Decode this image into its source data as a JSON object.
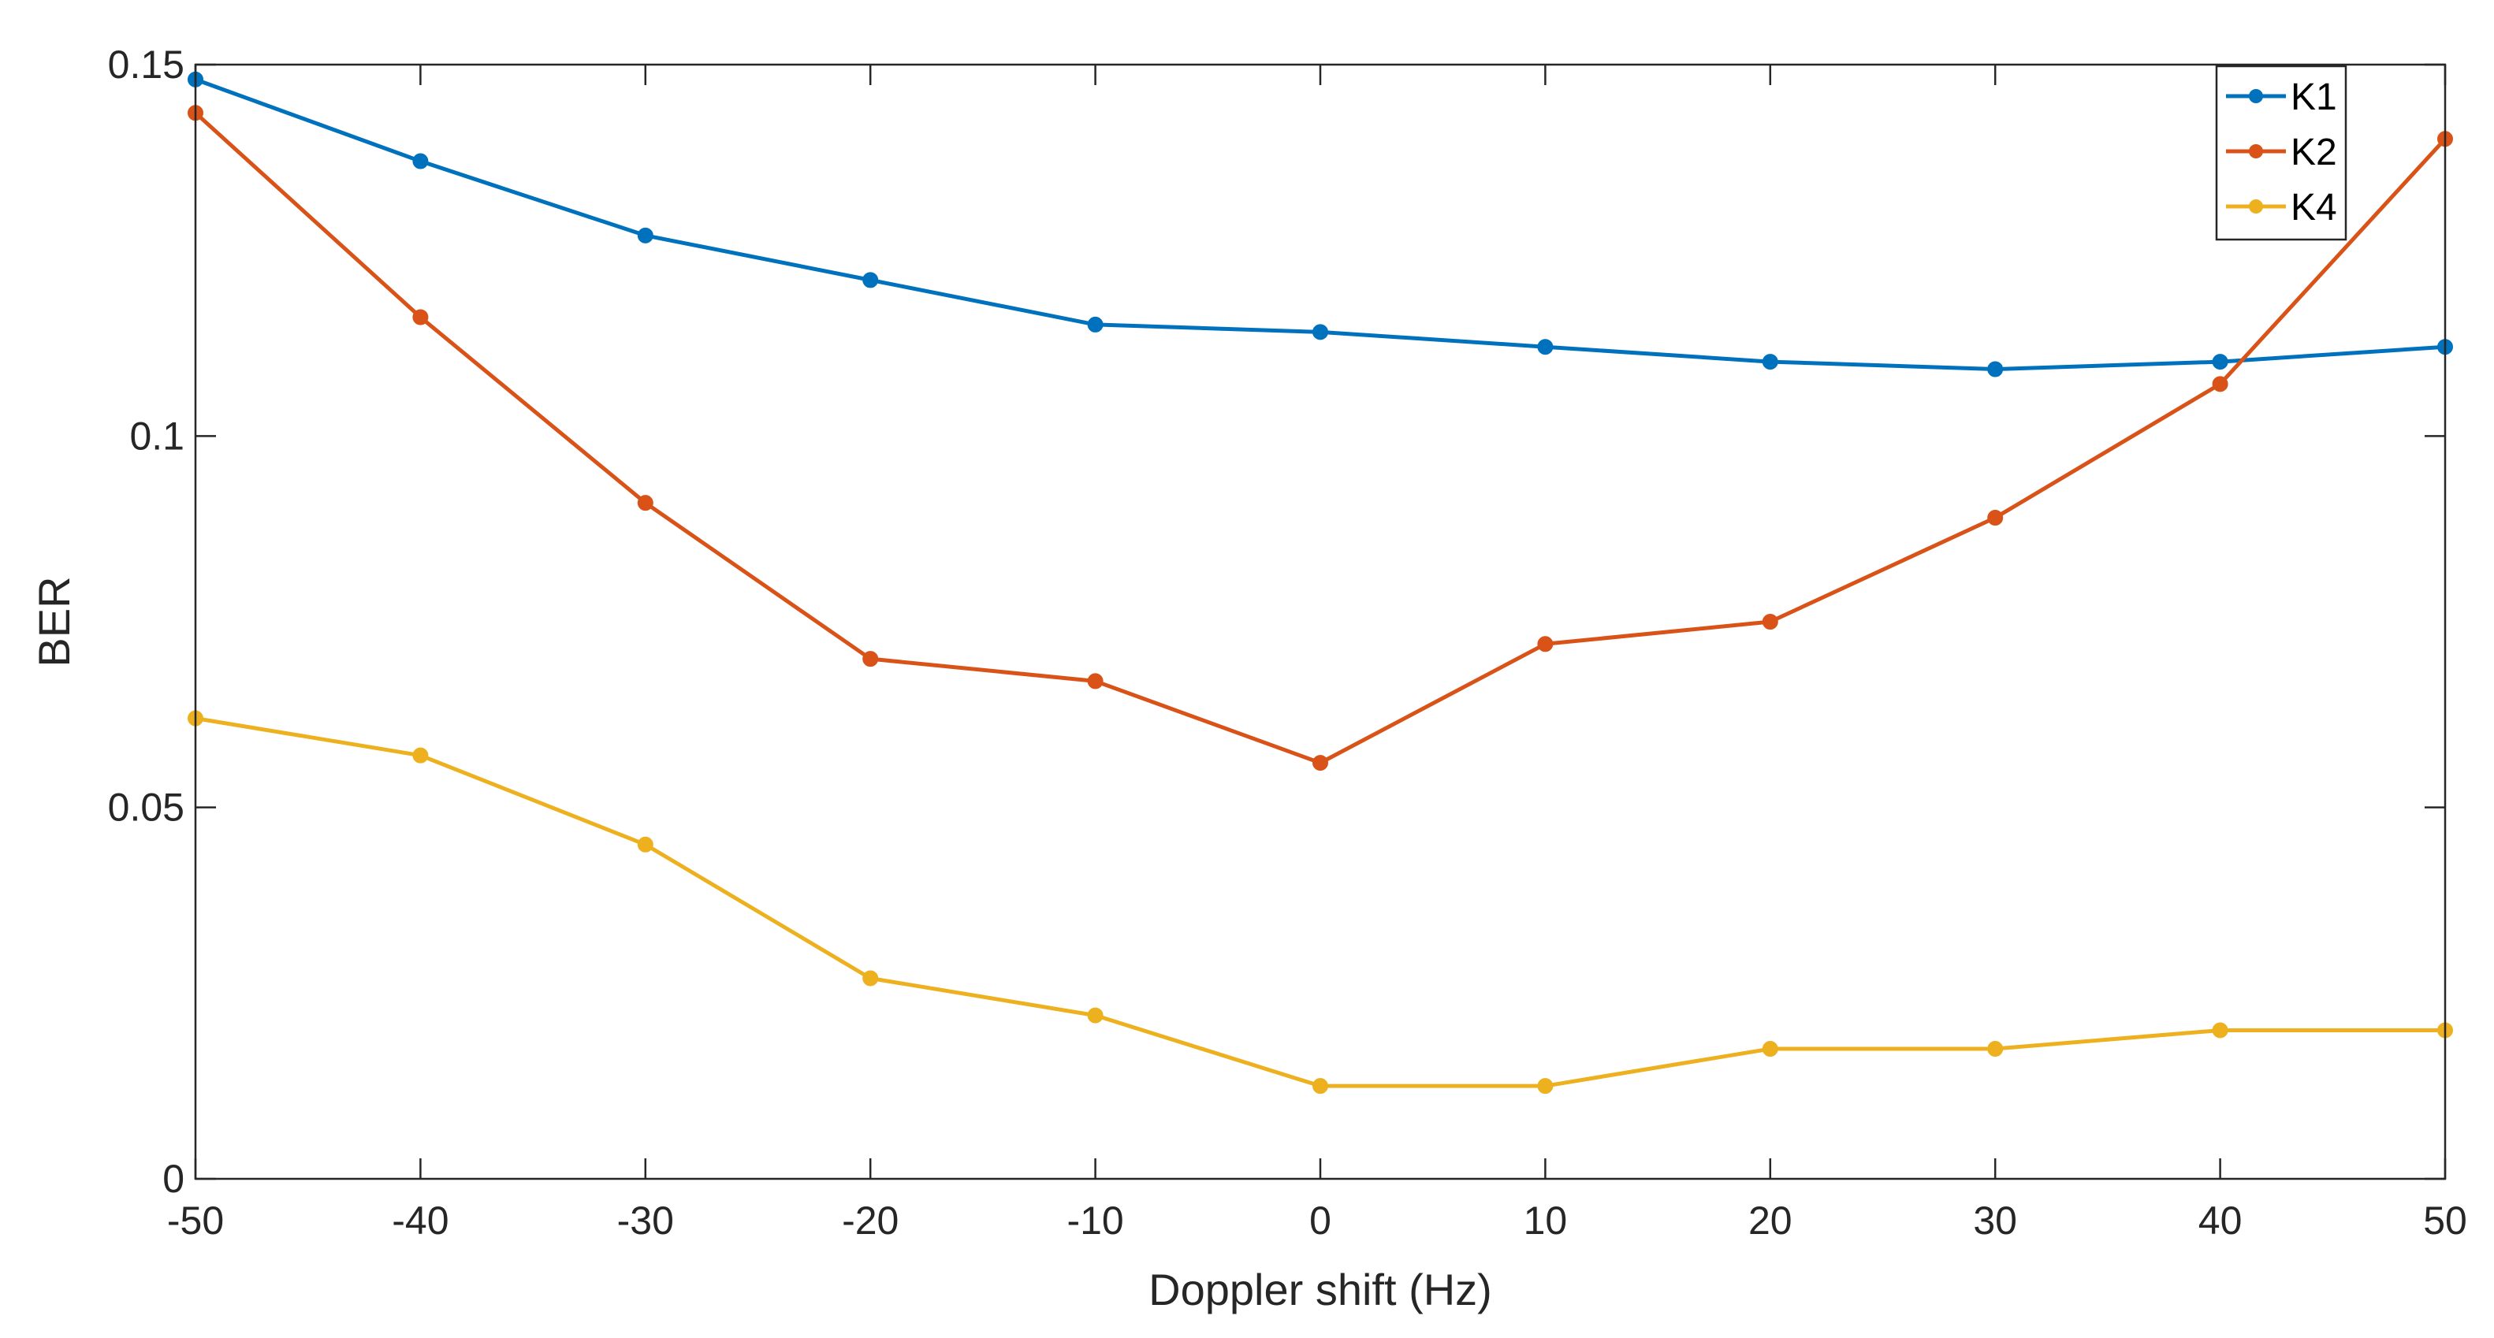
{
  "chart_data": {
    "type": "line",
    "title": "",
    "xlabel": "Doppler shift (Hz)",
    "ylabel": "BER",
    "x": [
      -50,
      -40,
      -30,
      -20,
      -10,
      0,
      10,
      20,
      30,
      40,
      50
    ],
    "xlim": [
      -50,
      50
    ],
    "ylim": [
      0,
      0.15
    ],
    "x_ticks": [
      -50,
      -40,
      -30,
      -20,
      -10,
      0,
      10,
      20,
      30,
      40,
      50
    ],
    "x_tick_labels": [
      "-50",
      "-40",
      "-30",
      "-20",
      "-10",
      "0",
      "10",
      "20",
      "30",
      "40",
      "50"
    ],
    "y_ticks": [
      0,
      0.05,
      0.1,
      0.15
    ],
    "y_tick_labels": [
      "0",
      "0.05",
      "0.1",
      "0.15"
    ],
    "grid": false,
    "legend_position": "top-right",
    "series": [
      {
        "name": "K1",
        "color": "#0072BD",
        "marker": "circle",
        "values": [
          0.148,
          0.137,
          0.127,
          0.121,
          0.115,
          0.114,
          0.112,
          0.11,
          0.109,
          0.11,
          0.112
        ]
      },
      {
        "name": "K2",
        "color": "#D95319",
        "marker": "circle",
        "values": [
          0.1435,
          0.116,
          0.091,
          0.07,
          0.067,
          0.056,
          0.072,
          0.075,
          0.089,
          0.107,
          0.14
        ]
      },
      {
        "name": "K4",
        "color": "#EDB120",
        "marker": "circle",
        "values": [
          0.062,
          0.057,
          0.045,
          0.027,
          0.022,
          0.0125,
          0.0125,
          0.0175,
          0.0175,
          0.02,
          0.02
        ]
      }
    ]
  }
}
